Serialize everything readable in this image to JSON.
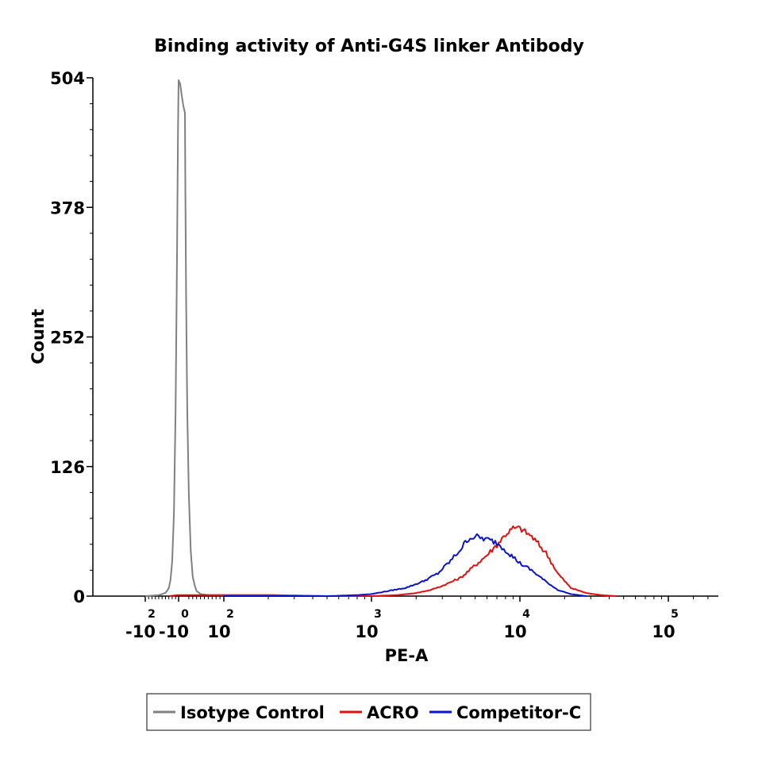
{
  "chart_data": {
    "type": "area",
    "title": "Binding activity of Anti-G4S linker Antibody",
    "xlabel": "PE-A",
    "ylabel": "Count",
    "x_scale": "biexponential (log above 10^2)",
    "ylim": [
      0,
      504
    ],
    "y_ticks": [
      "0",
      "126",
      "252",
      "378",
      "504"
    ],
    "x_ticks": [
      {
        "base": "-10",
        "exp": "2",
        "value": -100
      },
      {
        "base": "-10",
        "exp": "0",
        "value": -1
      },
      {
        "base": "10",
        "exp": "2",
        "value": 100
      },
      {
        "base": "10",
        "exp": "3",
        "value": 1000
      },
      {
        "base": "10",
        "exp": "4",
        "value": 10000
      },
      {
        "base": "10",
        "exp": "5",
        "value": 100000
      }
    ],
    "grid": false,
    "legend_position": "bottom",
    "series": [
      {
        "name": "Isotype Control",
        "color": "#808080",
        "x": [
          -100,
          -60,
          -40,
          -30,
          -25,
          -20,
          -15,
          -10,
          -6,
          -3,
          -1,
          0,
          1,
          3,
          6,
          10,
          15,
          20,
          25,
          30,
          40,
          60,
          100,
          200,
          500
        ],
        "y": [
          0,
          1,
          3,
          8,
          15,
          35,
          80,
          180,
          320,
          450,
          504,
          470,
          400,
          290,
          180,
          100,
          45,
          20,
          10,
          5,
          2,
          1,
          1,
          1,
          0
        ]
      },
      {
        "name": "ACRO",
        "color": "#dd1111",
        "x": [
          -30,
          -5,
          100,
          200,
          500,
          1000,
          1500,
          2000,
          2500,
          3000,
          4000,
          5000,
          6000,
          7000,
          8000,
          9000,
          10000,
          12000,
          15000,
          18000,
          22000,
          28000,
          35000,
          45000
        ],
        "y": [
          0,
          1,
          1,
          1,
          0,
          0,
          1,
          3,
          6,
          10,
          18,
          30,
          40,
          50,
          60,
          66,
          66,
          58,
          42,
          22,
          8,
          3,
          1,
          0
        ]
      },
      {
        "name": "Competitor-C",
        "color": "#0a14c8",
        "x": [
          100,
          500,
          800,
          1000,
          1300,
          1700,
          2200,
          2800,
          3500,
          4000,
          4500,
          5000,
          6000,
          7000,
          8000,
          9000,
          10000,
          12000,
          15000,
          18000,
          22000,
          28000
        ],
        "y": [
          0,
          0,
          1,
          2,
          5,
          8,
          14,
          22,
          36,
          46,
          56,
          58,
          55,
          52,
          45,
          38,
          32,
          25,
          14,
          6,
          2,
          0
        ]
      }
    ]
  }
}
